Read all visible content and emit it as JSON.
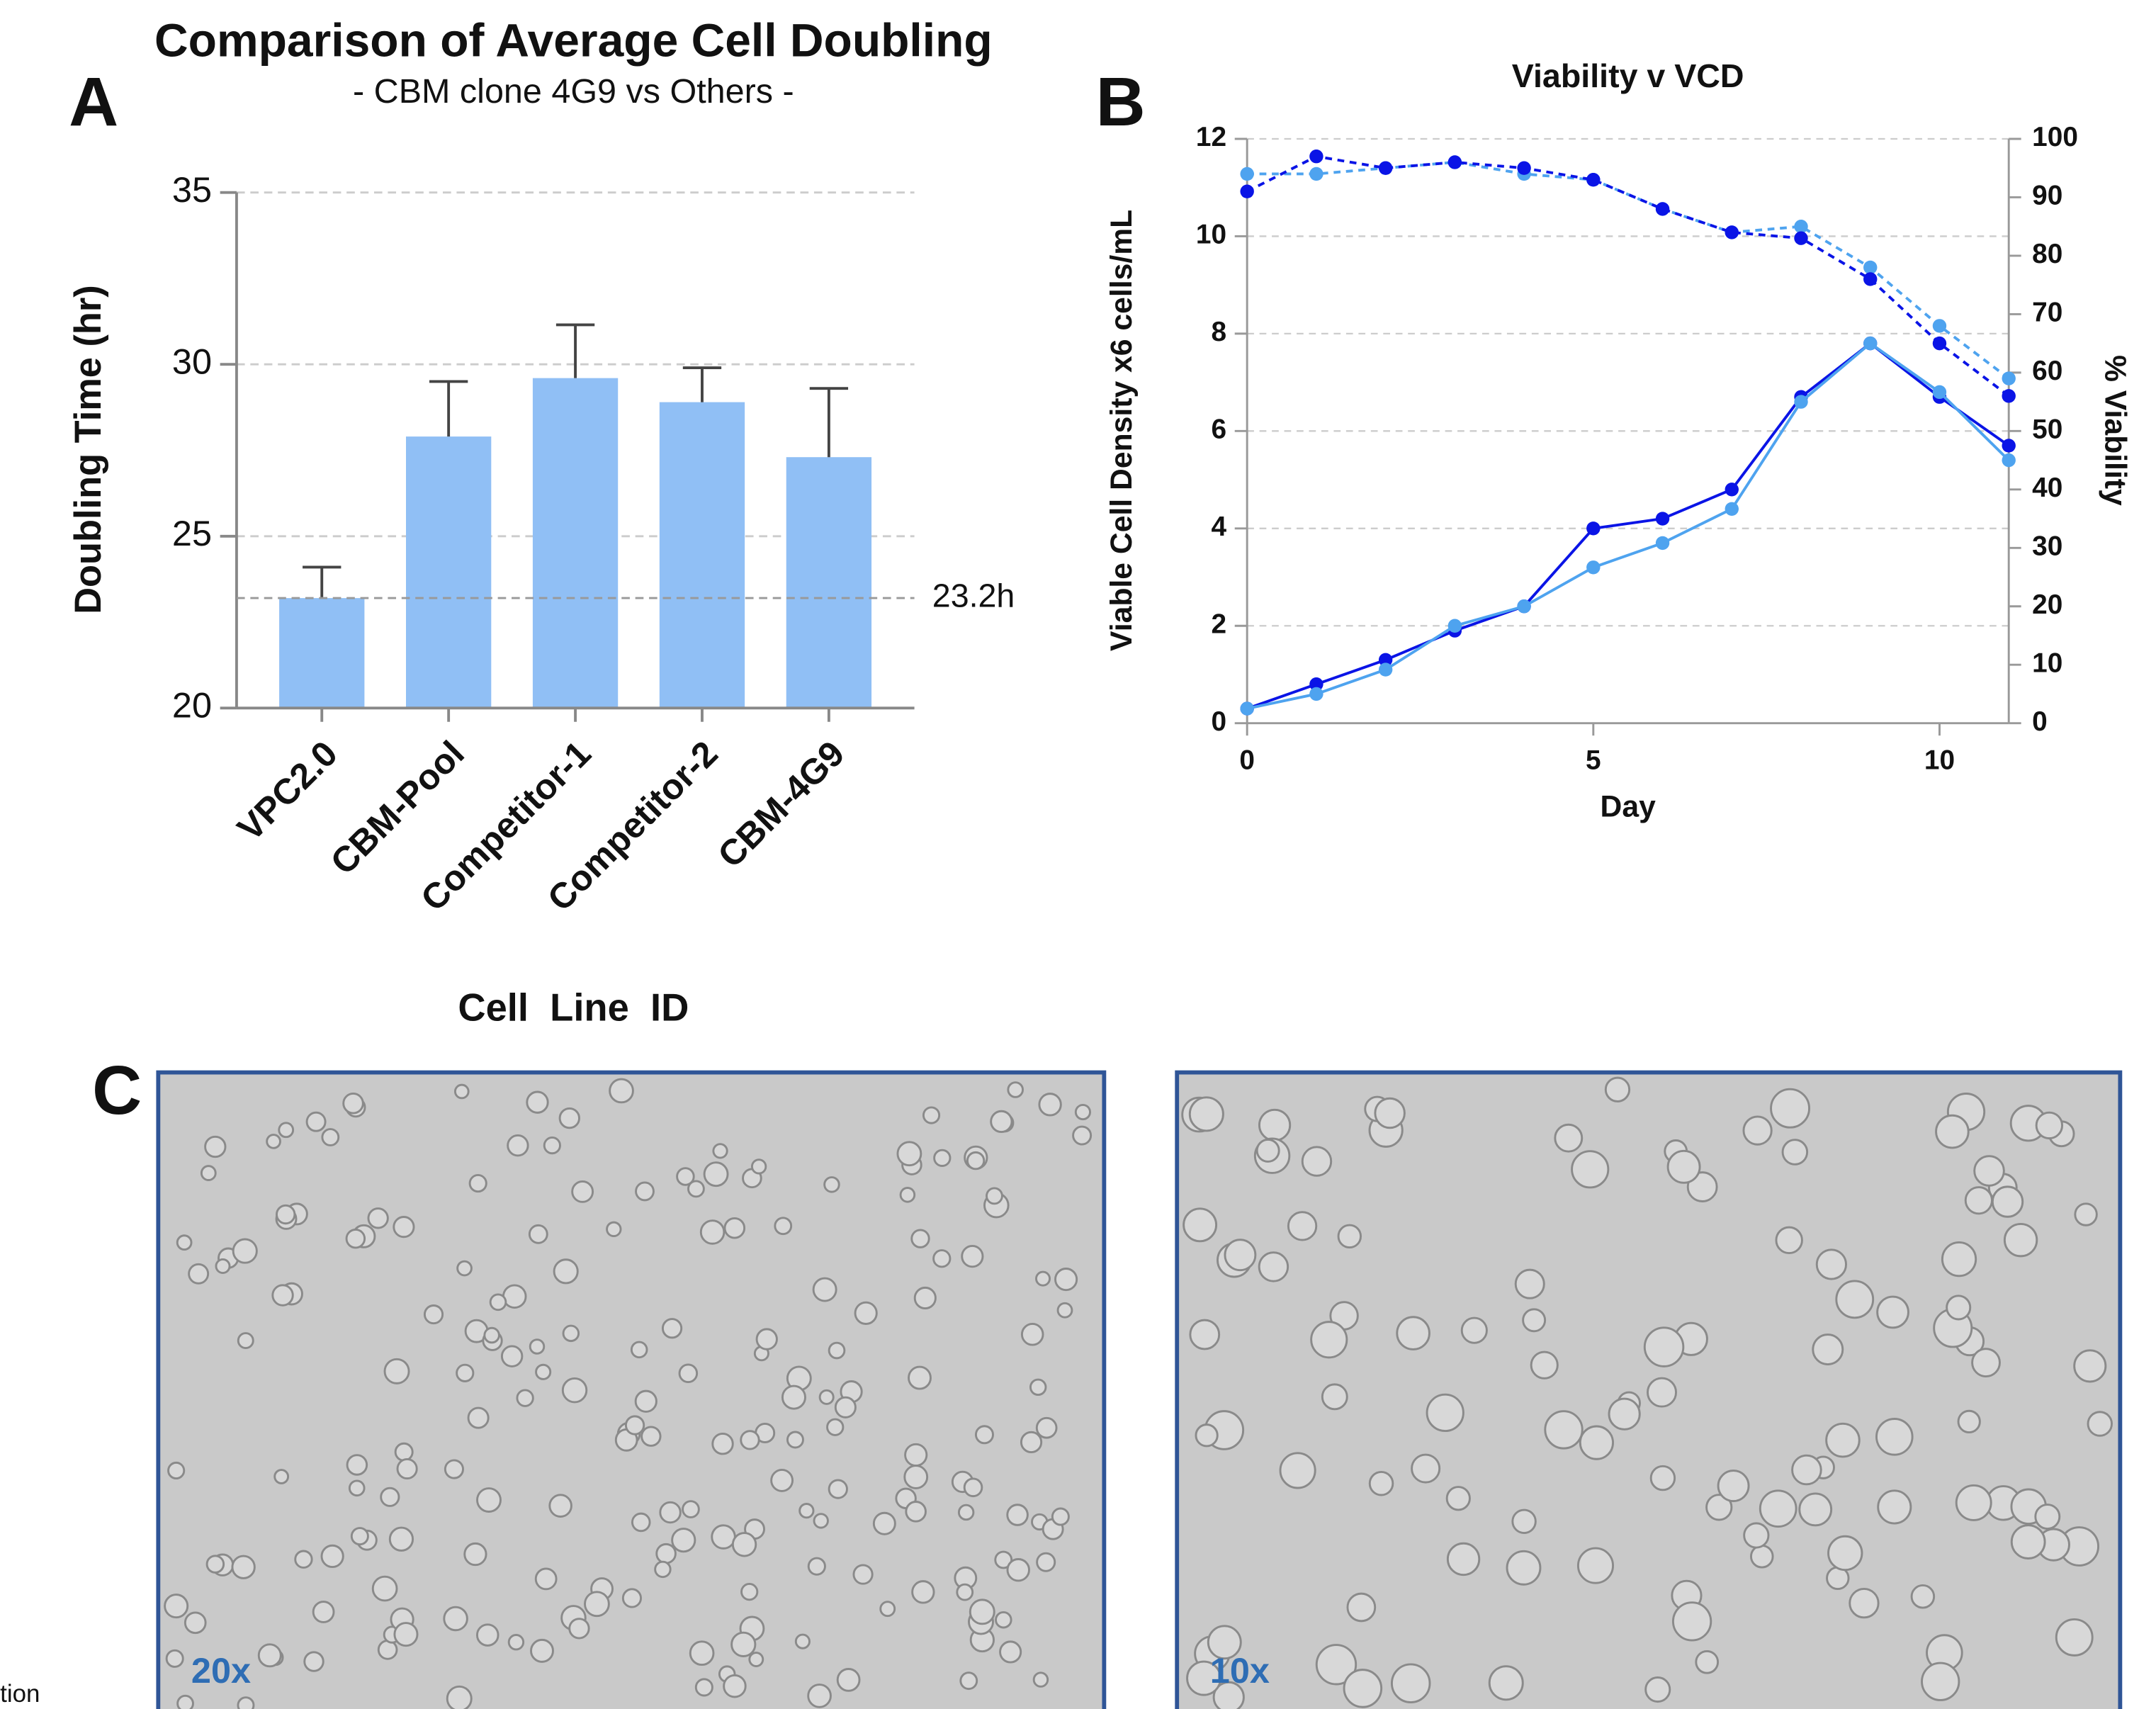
{
  "chart_data": [
    {
      "type": "bar",
      "panel": "A",
      "title": "Comparison of Average Cell Doubling",
      "subtitle": "- CBM clone 4G9 vs Others -",
      "y_label": "Doubling Time (hr)",
      "x_label": "Cell  Line  ID",
      "categories": [
        "VPC2.0",
        "CBM-Pool",
        "Competitor-1",
        "Competitor-2",
        "CBM-4G9"
      ],
      "values": [
        23.2,
        27.9,
        29.6,
        28.9,
        27.3
      ],
      "errors": [
        0.9,
        1.6,
        1.55,
        1.0,
        2.0
      ],
      "color": "#90bff5",
      "ylim": [
        20,
        35
      ],
      "yticks": [
        20,
        25,
        30,
        35
      ],
      "grid": true,
      "reference_line": {
        "value": 23.2,
        "label": "23.2h"
      }
    },
    {
      "type": "line",
      "panel": "B",
      "title": "Viability v VCD",
      "x_label": "Day",
      "y_label": "Viable Cell Density x6 cells/mL",
      "y2_label": "% Viability",
      "x": [
        0,
        1,
        2,
        3,
        4,
        5,
        6,
        7,
        8,
        9,
        10,
        11
      ],
      "xlim": [
        0,
        11
      ],
      "xticks": [
        0,
        5,
        10
      ],
      "ylim": [
        0,
        12
      ],
      "yticks": [
        0,
        2,
        4,
        6,
        8,
        10,
        12
      ],
      "y2lim": [
        0,
        100
      ],
      "y2ticks": [
        0,
        10,
        20,
        30,
        40,
        50,
        60,
        70,
        80,
        90,
        100
      ],
      "grid": true,
      "series": [
        {
          "color": "#0a14e6",
          "dash": false,
          "values": [
            0.3,
            0.8,
            1.3,
            1.9,
            2.4,
            4.0,
            4.2,
            4.8,
            6.7,
            7.8,
            6.7,
            5.7
          ]
        },
        {
          "color": "#4ea3ef",
          "dash": false,
          "values": [
            0.3,
            0.6,
            1.1,
            2.0,
            2.4,
            3.2,
            3.7,
            4.4,
            6.6,
            7.8,
            6.8,
            5.4
          ]
        },
        {
          "color": "#4ea3ef",
          "dash": true,
          "axis": "y2",
          "values": [
            94,
            94,
            95,
            96,
            94,
            93,
            88,
            84,
            85,
            78,
            68,
            59
          ]
        },
        {
          "color": "#0a14e6",
          "dash": true,
          "axis": "y2",
          "values": [
            91,
            97,
            95,
            96,
            95,
            93,
            88,
            84,
            83,
            76,
            65,
            56
          ]
        }
      ]
    }
  ],
  "micrographs": {
    "panel": "C",
    "images": [
      {
        "label": "20x"
      },
      {
        "label": "10x"
      }
    ]
  },
  "edge_text": "tion"
}
